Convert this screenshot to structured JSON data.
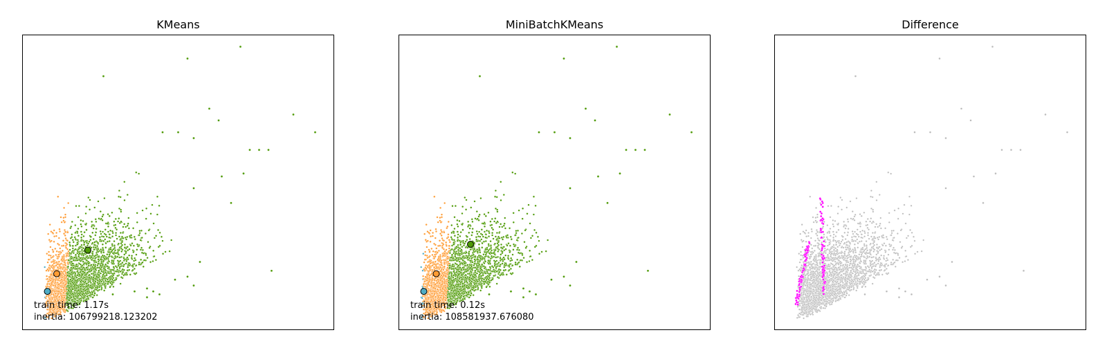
{
  "chart_data": [
    {
      "type": "scatter",
      "title": "KMeans",
      "xlabel": "",
      "ylabel": "",
      "axes_visible": false,
      "grid": false,
      "annotations": {
        "train_time": "train time: 1.17s",
        "inertia": "inertia: 106799218.123202"
      },
      "colors": {
        "cluster_0": "#4EACC5",
        "cluster_1": "#FF9C34",
        "cluster_2": "#4E9A06",
        "point_edge": "#ffffff",
        "center_edge": "#000000"
      },
      "centers": [
        {
          "cluster": 0,
          "x": 0.08,
          "y": 0.13
        },
        {
          "cluster": 1,
          "x": 0.11,
          "y": 0.19
        },
        {
          "cluster": 2,
          "x": 0.21,
          "y": 0.27
        }
      ],
      "outliers": [
        {
          "cluster": 2,
          "x": 0.7,
          "y": 0.96
        },
        {
          "cluster": 2,
          "x": 0.53,
          "y": 0.92
        },
        {
          "cluster": 2,
          "x": 0.26,
          "y": 0.86
        },
        {
          "cluster": 2,
          "x": 0.6,
          "y": 0.75
        },
        {
          "cluster": 2,
          "x": 0.87,
          "y": 0.73
        },
        {
          "cluster": 2,
          "x": 0.94,
          "y": 0.67
        },
        {
          "cluster": 2,
          "x": 0.63,
          "y": 0.71
        },
        {
          "cluster": 2,
          "x": 0.45,
          "y": 0.67
        },
        {
          "cluster": 2,
          "x": 0.5,
          "y": 0.67
        },
        {
          "cluster": 2,
          "x": 0.55,
          "y": 0.65
        },
        {
          "cluster": 2,
          "x": 0.73,
          "y": 0.61
        },
        {
          "cluster": 2,
          "x": 0.76,
          "y": 0.61
        },
        {
          "cluster": 2,
          "x": 0.79,
          "y": 0.61
        },
        {
          "cluster": 2,
          "x": 0.71,
          "y": 0.53
        },
        {
          "cluster": 2,
          "x": 0.64,
          "y": 0.52
        },
        {
          "cluster": 2,
          "x": 0.55,
          "y": 0.48
        },
        {
          "cluster": 2,
          "x": 0.67,
          "y": 0.43
        },
        {
          "cluster": 2,
          "x": 0.57,
          "y": 0.23
        },
        {
          "cluster": 2,
          "x": 0.8,
          "y": 0.2
        },
        {
          "cluster": 2,
          "x": 0.49,
          "y": 0.17
        },
        {
          "cluster": 2,
          "x": 0.53,
          "y": 0.18
        },
        {
          "cluster": 2,
          "x": 0.55,
          "y": 0.15
        },
        {
          "cluster": 2,
          "x": 0.36,
          "y": 0.13
        },
        {
          "cluster": 2,
          "x": 0.4,
          "y": 0.14
        },
        {
          "cluster": 2,
          "x": 0.42,
          "y": 0.13
        },
        {
          "cluster": 2,
          "x": 0.44,
          "y": 0.12
        },
        {
          "cluster": 2,
          "x": 0.4,
          "y": 0.11
        },
        {
          "cluster": 2,
          "x": 0.29,
          "y": 0.12
        }
      ]
    },
    {
      "type": "scatter",
      "title": "MiniBatchKMeans",
      "xlabel": "",
      "ylabel": "",
      "axes_visible": false,
      "grid": false,
      "annotations": {
        "train_time": "train time: 0.12s",
        "inertia": "inertia: 108581937.676080"
      },
      "colors": {
        "cluster_0": "#4EACC5",
        "cluster_1": "#FF9C34",
        "cluster_2": "#4E9A06",
        "point_edge": "#ffffff",
        "center_edge": "#000000"
      },
      "centers": [
        {
          "cluster": 0,
          "x": 0.08,
          "y": 0.13
        },
        {
          "cluster": 1,
          "x": 0.12,
          "y": 0.19
        },
        {
          "cluster": 2,
          "x": 0.23,
          "y": 0.29
        }
      ],
      "outliers": [
        {
          "cluster": 2,
          "x": 0.7,
          "y": 0.96
        },
        {
          "cluster": 2,
          "x": 0.53,
          "y": 0.92
        },
        {
          "cluster": 2,
          "x": 0.26,
          "y": 0.86
        },
        {
          "cluster": 2,
          "x": 0.6,
          "y": 0.75
        },
        {
          "cluster": 2,
          "x": 0.87,
          "y": 0.73
        },
        {
          "cluster": 2,
          "x": 0.94,
          "y": 0.67
        },
        {
          "cluster": 2,
          "x": 0.63,
          "y": 0.71
        },
        {
          "cluster": 2,
          "x": 0.45,
          "y": 0.67
        },
        {
          "cluster": 2,
          "x": 0.5,
          "y": 0.67
        },
        {
          "cluster": 2,
          "x": 0.55,
          "y": 0.65
        },
        {
          "cluster": 2,
          "x": 0.73,
          "y": 0.61
        },
        {
          "cluster": 2,
          "x": 0.76,
          "y": 0.61
        },
        {
          "cluster": 2,
          "x": 0.79,
          "y": 0.61
        },
        {
          "cluster": 2,
          "x": 0.71,
          "y": 0.53
        },
        {
          "cluster": 2,
          "x": 0.64,
          "y": 0.52
        },
        {
          "cluster": 2,
          "x": 0.55,
          "y": 0.48
        },
        {
          "cluster": 2,
          "x": 0.67,
          "y": 0.43
        },
        {
          "cluster": 2,
          "x": 0.57,
          "y": 0.23
        },
        {
          "cluster": 2,
          "x": 0.8,
          "y": 0.2
        },
        {
          "cluster": 2,
          "x": 0.49,
          "y": 0.17
        },
        {
          "cluster": 2,
          "x": 0.53,
          "y": 0.18
        },
        {
          "cluster": 2,
          "x": 0.55,
          "y": 0.15
        },
        {
          "cluster": 2,
          "x": 0.36,
          "y": 0.13
        },
        {
          "cluster": 2,
          "x": 0.4,
          "y": 0.14
        },
        {
          "cluster": 2,
          "x": 0.42,
          "y": 0.13
        },
        {
          "cluster": 2,
          "x": 0.44,
          "y": 0.12
        },
        {
          "cluster": 2,
          "x": 0.4,
          "y": 0.11
        },
        {
          "cluster": 2,
          "x": 0.29,
          "y": 0.12
        }
      ]
    },
    {
      "type": "scatter",
      "title": "Difference",
      "xlabel": "",
      "ylabel": "",
      "axes_visible": false,
      "grid": false,
      "colors": {
        "same": "#bbbbbb",
        "different": "#ff00ff",
        "point_edge": "#ffffff"
      },
      "different_bands": [
        {
          "x_start": 0.07,
          "y_start": 0.09,
          "x_end": 0.11,
          "y_end": 0.3
        },
        {
          "x_start": 0.16,
          "y_start": 0.1,
          "x_end": 0.15,
          "y_end": 0.45
        }
      ],
      "outliers": [
        {
          "x": 0.7,
          "y": 0.96
        },
        {
          "x": 0.53,
          "y": 0.92
        },
        {
          "x": 0.26,
          "y": 0.86
        },
        {
          "x": 0.6,
          "y": 0.75
        },
        {
          "x": 0.87,
          "y": 0.73
        },
        {
          "x": 0.94,
          "y": 0.67
        },
        {
          "x": 0.63,
          "y": 0.71
        },
        {
          "x": 0.45,
          "y": 0.67
        },
        {
          "x": 0.5,
          "y": 0.67
        },
        {
          "x": 0.55,
          "y": 0.65
        },
        {
          "x": 0.73,
          "y": 0.61
        },
        {
          "x": 0.76,
          "y": 0.61
        },
        {
          "x": 0.79,
          "y": 0.61
        },
        {
          "x": 0.71,
          "y": 0.53
        },
        {
          "x": 0.64,
          "y": 0.52
        },
        {
          "x": 0.55,
          "y": 0.48
        },
        {
          "x": 0.67,
          "y": 0.43
        },
        {
          "x": 0.57,
          "y": 0.23
        },
        {
          "x": 0.8,
          "y": 0.2
        },
        {
          "x": 0.49,
          "y": 0.17
        },
        {
          "x": 0.53,
          "y": 0.18
        },
        {
          "x": 0.55,
          "y": 0.15
        },
        {
          "x": 0.36,
          "y": 0.13
        },
        {
          "x": 0.4,
          "y": 0.14
        },
        {
          "x": 0.42,
          "y": 0.13
        },
        {
          "x": 0.44,
          "y": 0.12
        },
        {
          "x": 0.4,
          "y": 0.11
        },
        {
          "x": 0.29,
          "y": 0.12
        }
      ]
    }
  ]
}
